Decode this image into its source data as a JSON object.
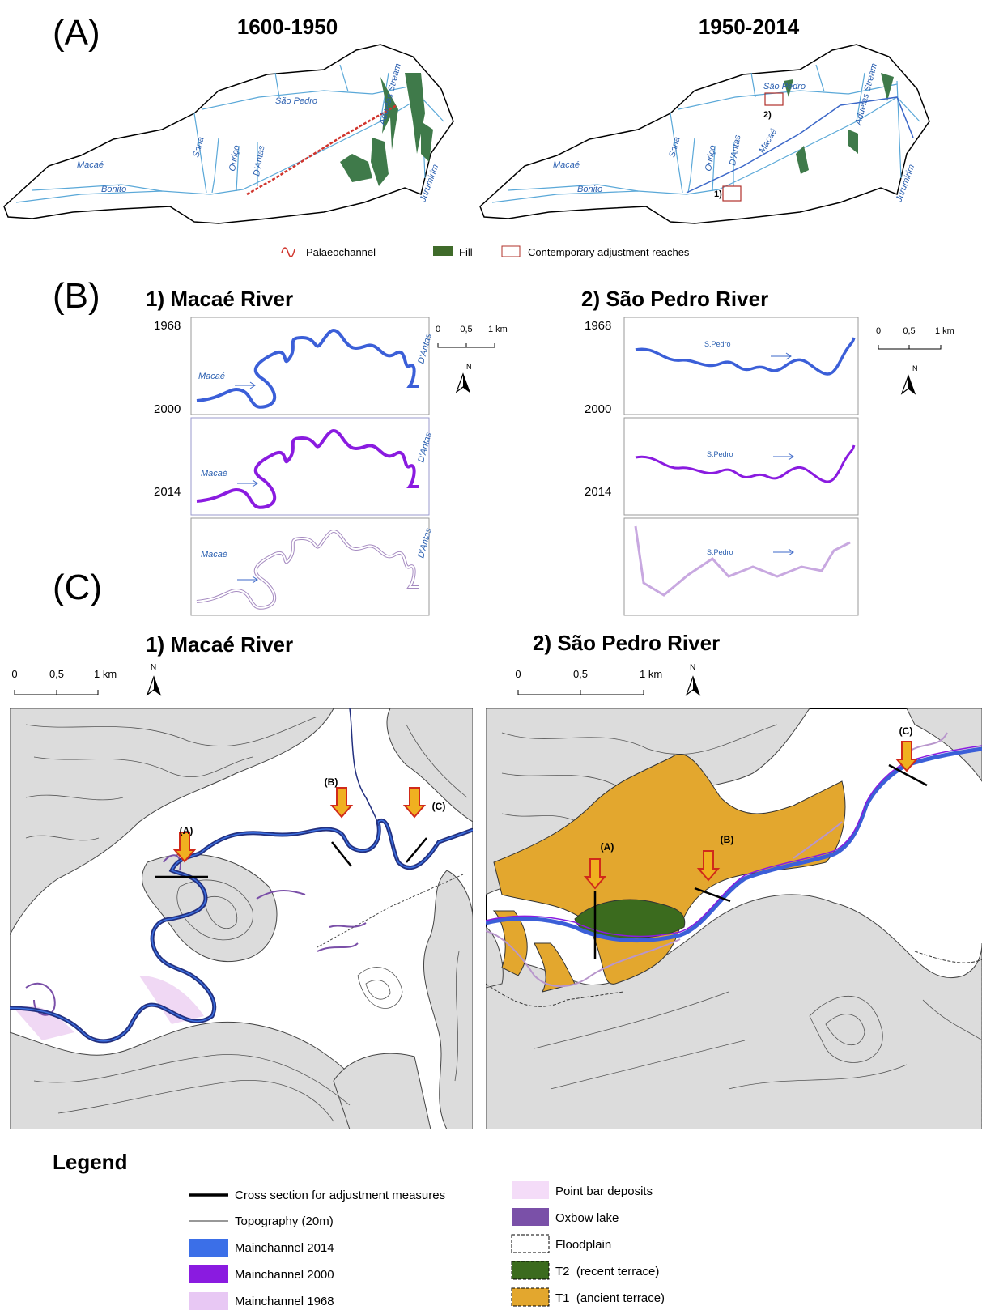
{
  "panel_a": {
    "label": "(A)",
    "maps": [
      {
        "title": "1600-1950",
        "rivers": [
          "Macaé",
          "Bonito",
          "Sana",
          "Ouriço",
          "D'Antas",
          "São Pedro",
          "Aduelas Stream",
          "Jurumirim"
        ]
      },
      {
        "title": "1950-2014",
        "rivers": [
          "Macaé",
          "Bonito",
          "Sana",
          "Ouriço",
          "D'Antas",
          "Macaé",
          "São Pedro",
          "Aduelas Stream",
          "Jurumirim"
        ],
        "reach_labels": [
          "1)",
          "2)"
        ]
      }
    ],
    "legend": [
      "Palaeochannel",
      "Fill",
      "Contemporary adjustment reaches"
    ]
  },
  "panel_b": {
    "label": "(B)",
    "sites": [
      {
        "title": "1) Macaé River",
        "years": [
          "1968",
          "2000",
          "2014"
        ],
        "river_label": "Macaé",
        "tributary": "D'Antas"
      },
      {
        "title": "2) São Pedro River",
        "years": [
          "1968",
          "2000",
          "2014"
        ],
        "river_label": "S.Pedro"
      }
    ],
    "scale": [
      "0",
      "0,5",
      "1 km"
    ],
    "north": "N"
  },
  "panel_c": {
    "label": "(C)",
    "sites": [
      {
        "title": "1) Macaé River",
        "sections": [
          "(A)",
          "(B)",
          "(C)"
        ]
      },
      {
        "title": "2) São Pedro River",
        "sections": [
          "(A)",
          "(B)",
          "(C)"
        ]
      }
    ],
    "scale": [
      "0",
      "0,5",
      "1 km"
    ],
    "north": "N"
  },
  "legend": {
    "title": "Legend",
    "left": [
      "Cross section for adjustment measures",
      "Topography (20m)",
      "Mainchannel 2014",
      "Mainchannel 2000",
      "Mainchannel 1968"
    ],
    "right": [
      "Point bar deposits",
      "Oxbow lake",
      "Floodplain",
      "T2  (recent terrace)",
      "T1  (ancient terrace)"
    ]
  }
}
